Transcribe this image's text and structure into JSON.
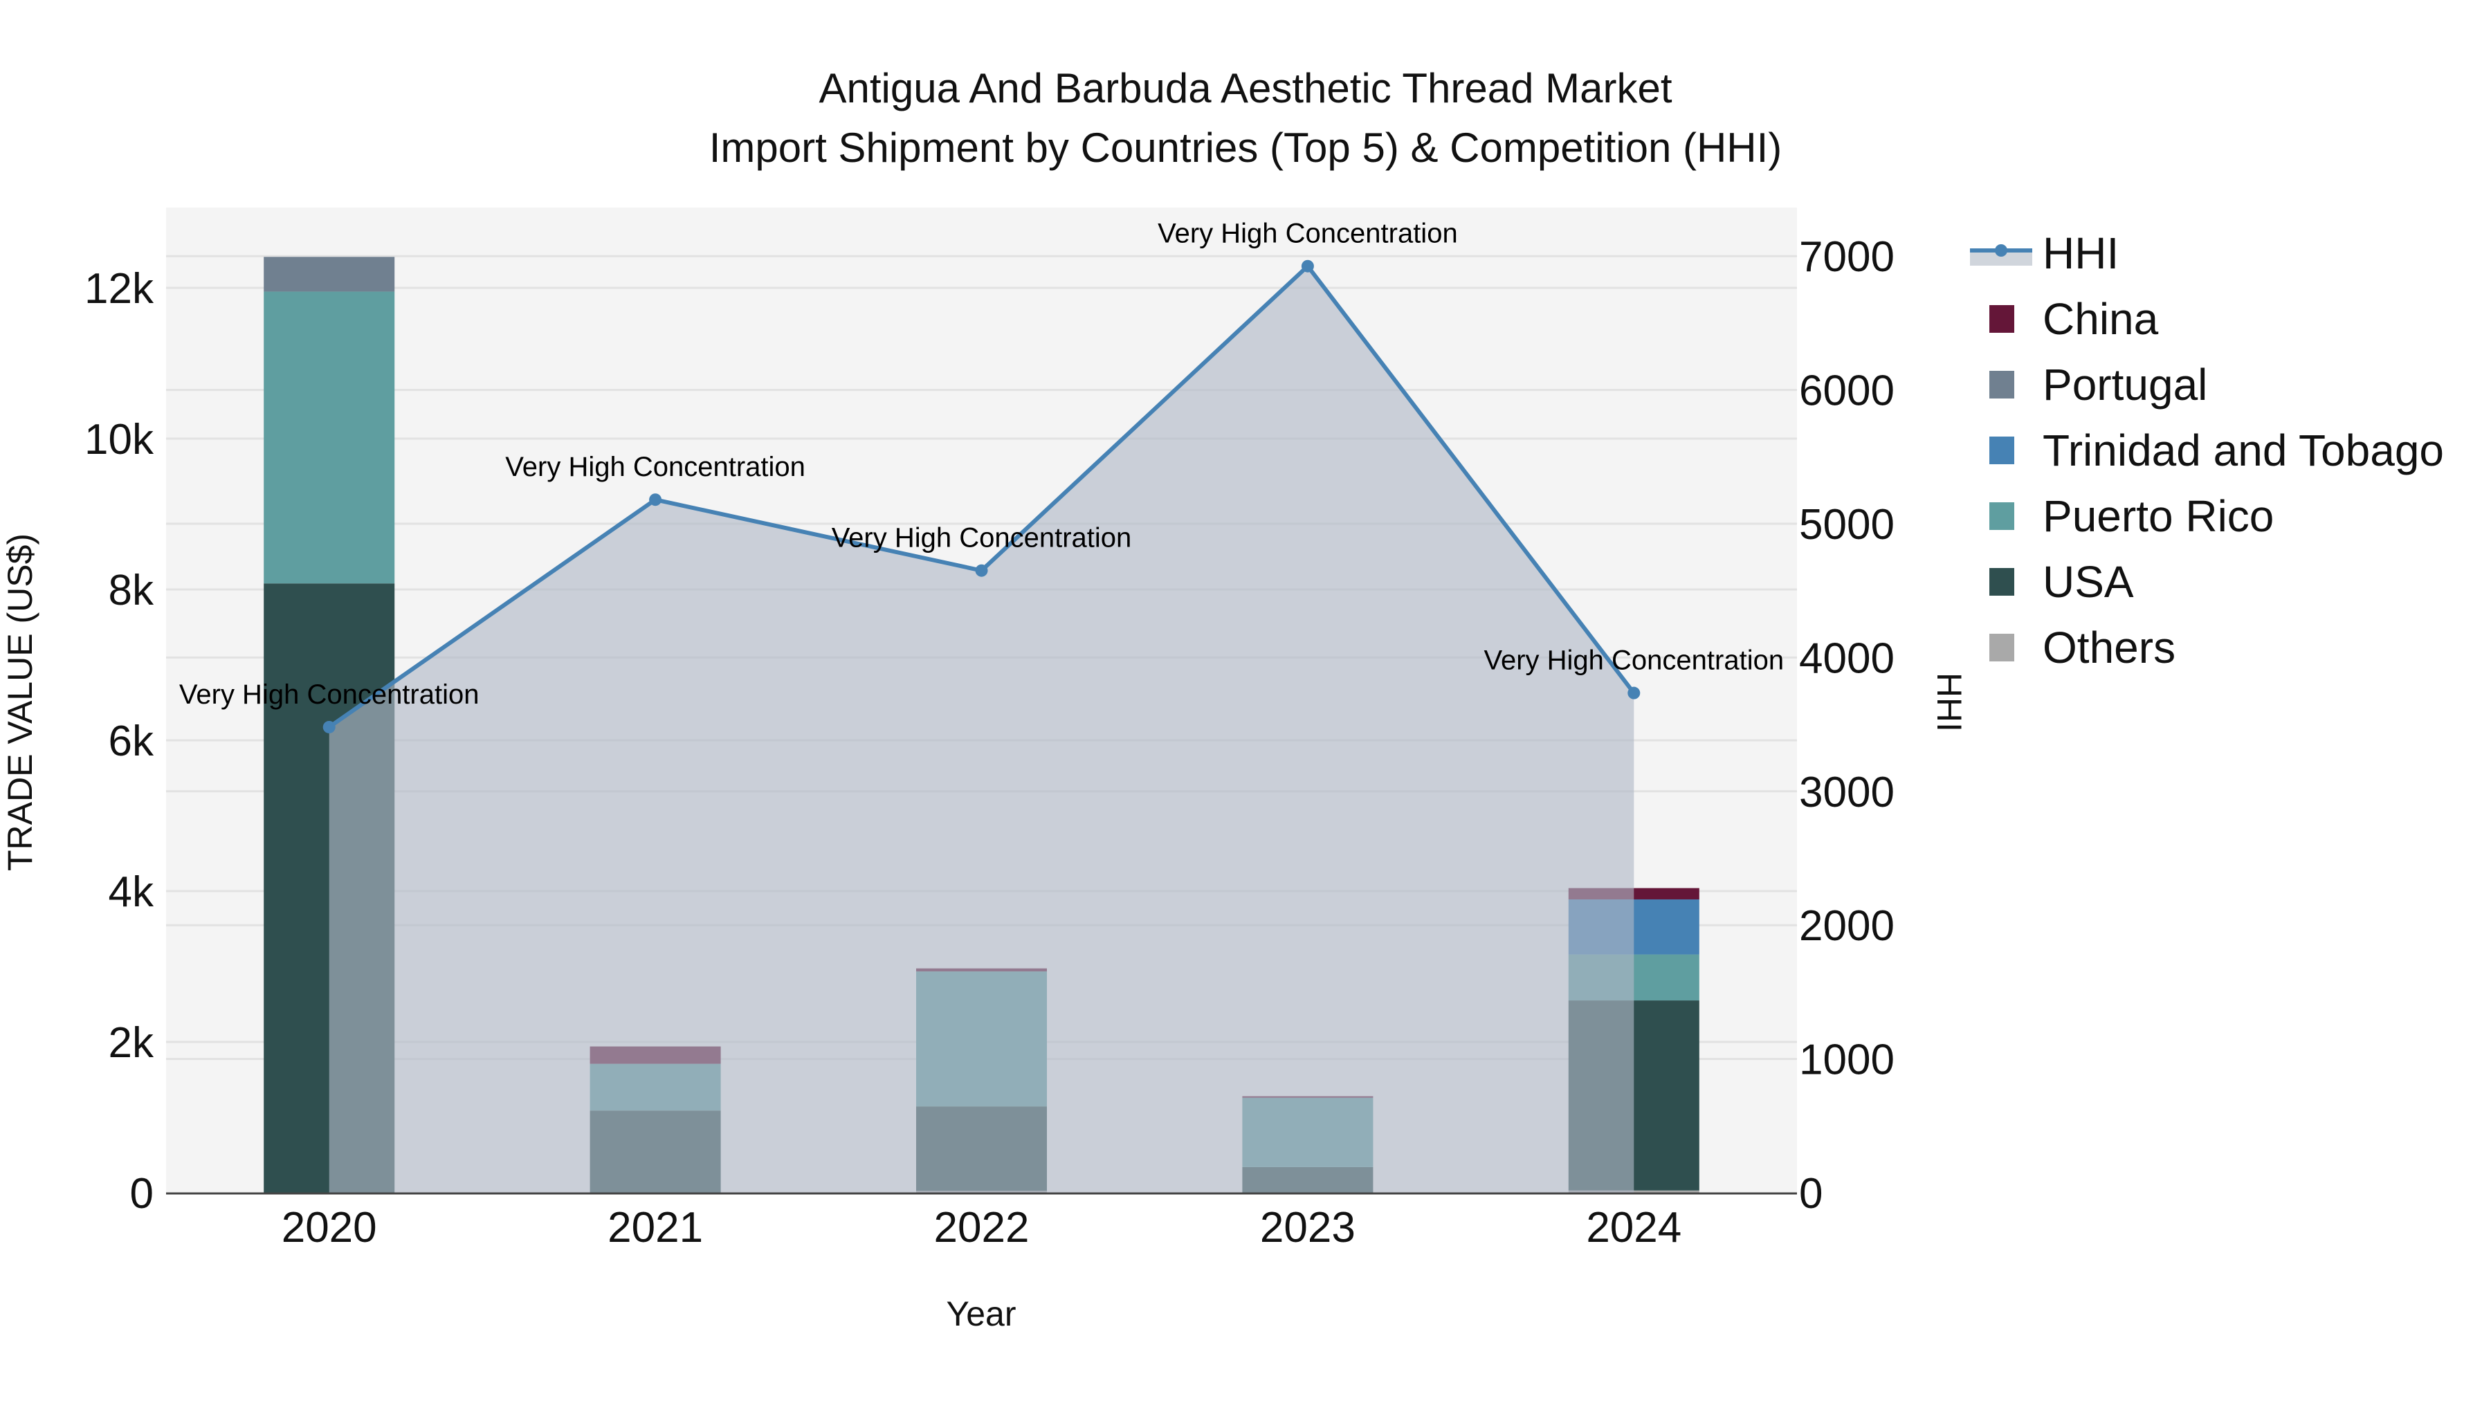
{
  "title": {
    "line1": "Antigua And Barbuda Aesthetic Thread Market",
    "line2": "Import Shipment by Countries (Top 5) & Competition (HHI)"
  },
  "axes": {
    "x_title": "Year",
    "y_left_title": "TRADE VALUE (US$)",
    "y_right_title": "HHI",
    "y_left_ticks": [
      "0",
      "2k",
      "4k",
      "6k",
      "8k",
      "10k",
      "12k"
    ],
    "y_right_ticks": [
      "0",
      "1000",
      "2000",
      "3000",
      "4000",
      "5000",
      "6000",
      "7000"
    ]
  },
  "legend": [
    {
      "name": "HHI",
      "color": "#4682b4",
      "type": "line"
    },
    {
      "name": "China",
      "color": "#641638",
      "type": "box"
    },
    {
      "name": "Portugal",
      "color": "#708090",
      "type": "box"
    },
    {
      "name": "Trinidad and Tobago",
      "color": "#4682b4",
      "type": "box"
    },
    {
      "name": "Puerto Rico",
      "color": "#5f9ea0",
      "type": "box"
    },
    {
      "name": "USA",
      "color": "#2f4f4f",
      "type": "box"
    },
    {
      "name": "Others",
      "color": "#a9a9a9",
      "type": "box"
    }
  ],
  "annotations": [
    "Very High Concentration",
    "Very High Concentration",
    "Very High Concentration",
    "Very High Concentration",
    "Very High Concentration"
  ],
  "chart_data": {
    "type": "bar",
    "subtype": "stacked bar with HHI line (secondary axis, area fill)",
    "title": "Antigua And Barbuda Aesthetic Thread Market — Import Shipment by Countries (Top 5) & Competition (HHI)",
    "xlabel": "Year",
    "ylabel": "TRADE VALUE (US$)",
    "y2label": "HHI",
    "categories": [
      "2020",
      "2021",
      "2022",
      "2023",
      "2024"
    ],
    "ylim": [
      0,
      13000
    ],
    "y2lim": [
      0,
      7350
    ],
    "series": [
      {
        "name": "Others",
        "color": "#a9a9a9",
        "values": [
          0,
          0,
          25,
          0,
          30
        ]
      },
      {
        "name": "USA",
        "color": "#2f4f4f",
        "values": [
          8080,
          1090,
          1120,
          340,
          2520
        ]
      },
      {
        "name": "Puerto Rico",
        "color": "#5f9ea0",
        "values": [
          3870,
          620,
          1790,
          920,
          610
        ]
      },
      {
        "name": "Trinidad and Tobago",
        "color": "#4682b4",
        "values": [
          0,
          0,
          0,
          0,
          730
        ]
      },
      {
        "name": "Portugal",
        "color": "#708090",
        "values": [
          460,
          0,
          0,
          0,
          0
        ]
      },
      {
        "name": "China",
        "color": "#641638",
        "values": [
          0,
          230,
          40,
          20,
          150
        ]
      }
    ],
    "hhi": {
      "name": "HHI",
      "axis": "right",
      "color": "#4682b4",
      "values": [
        3480,
        5180,
        4650,
        6925,
        3735
      ],
      "labels": [
        "Very High Concentration",
        "Very High Concentration",
        "Very High Concentration",
        "Very High Concentration",
        "Very High Concentration"
      ]
    },
    "grid": true,
    "legend_position": "right"
  }
}
